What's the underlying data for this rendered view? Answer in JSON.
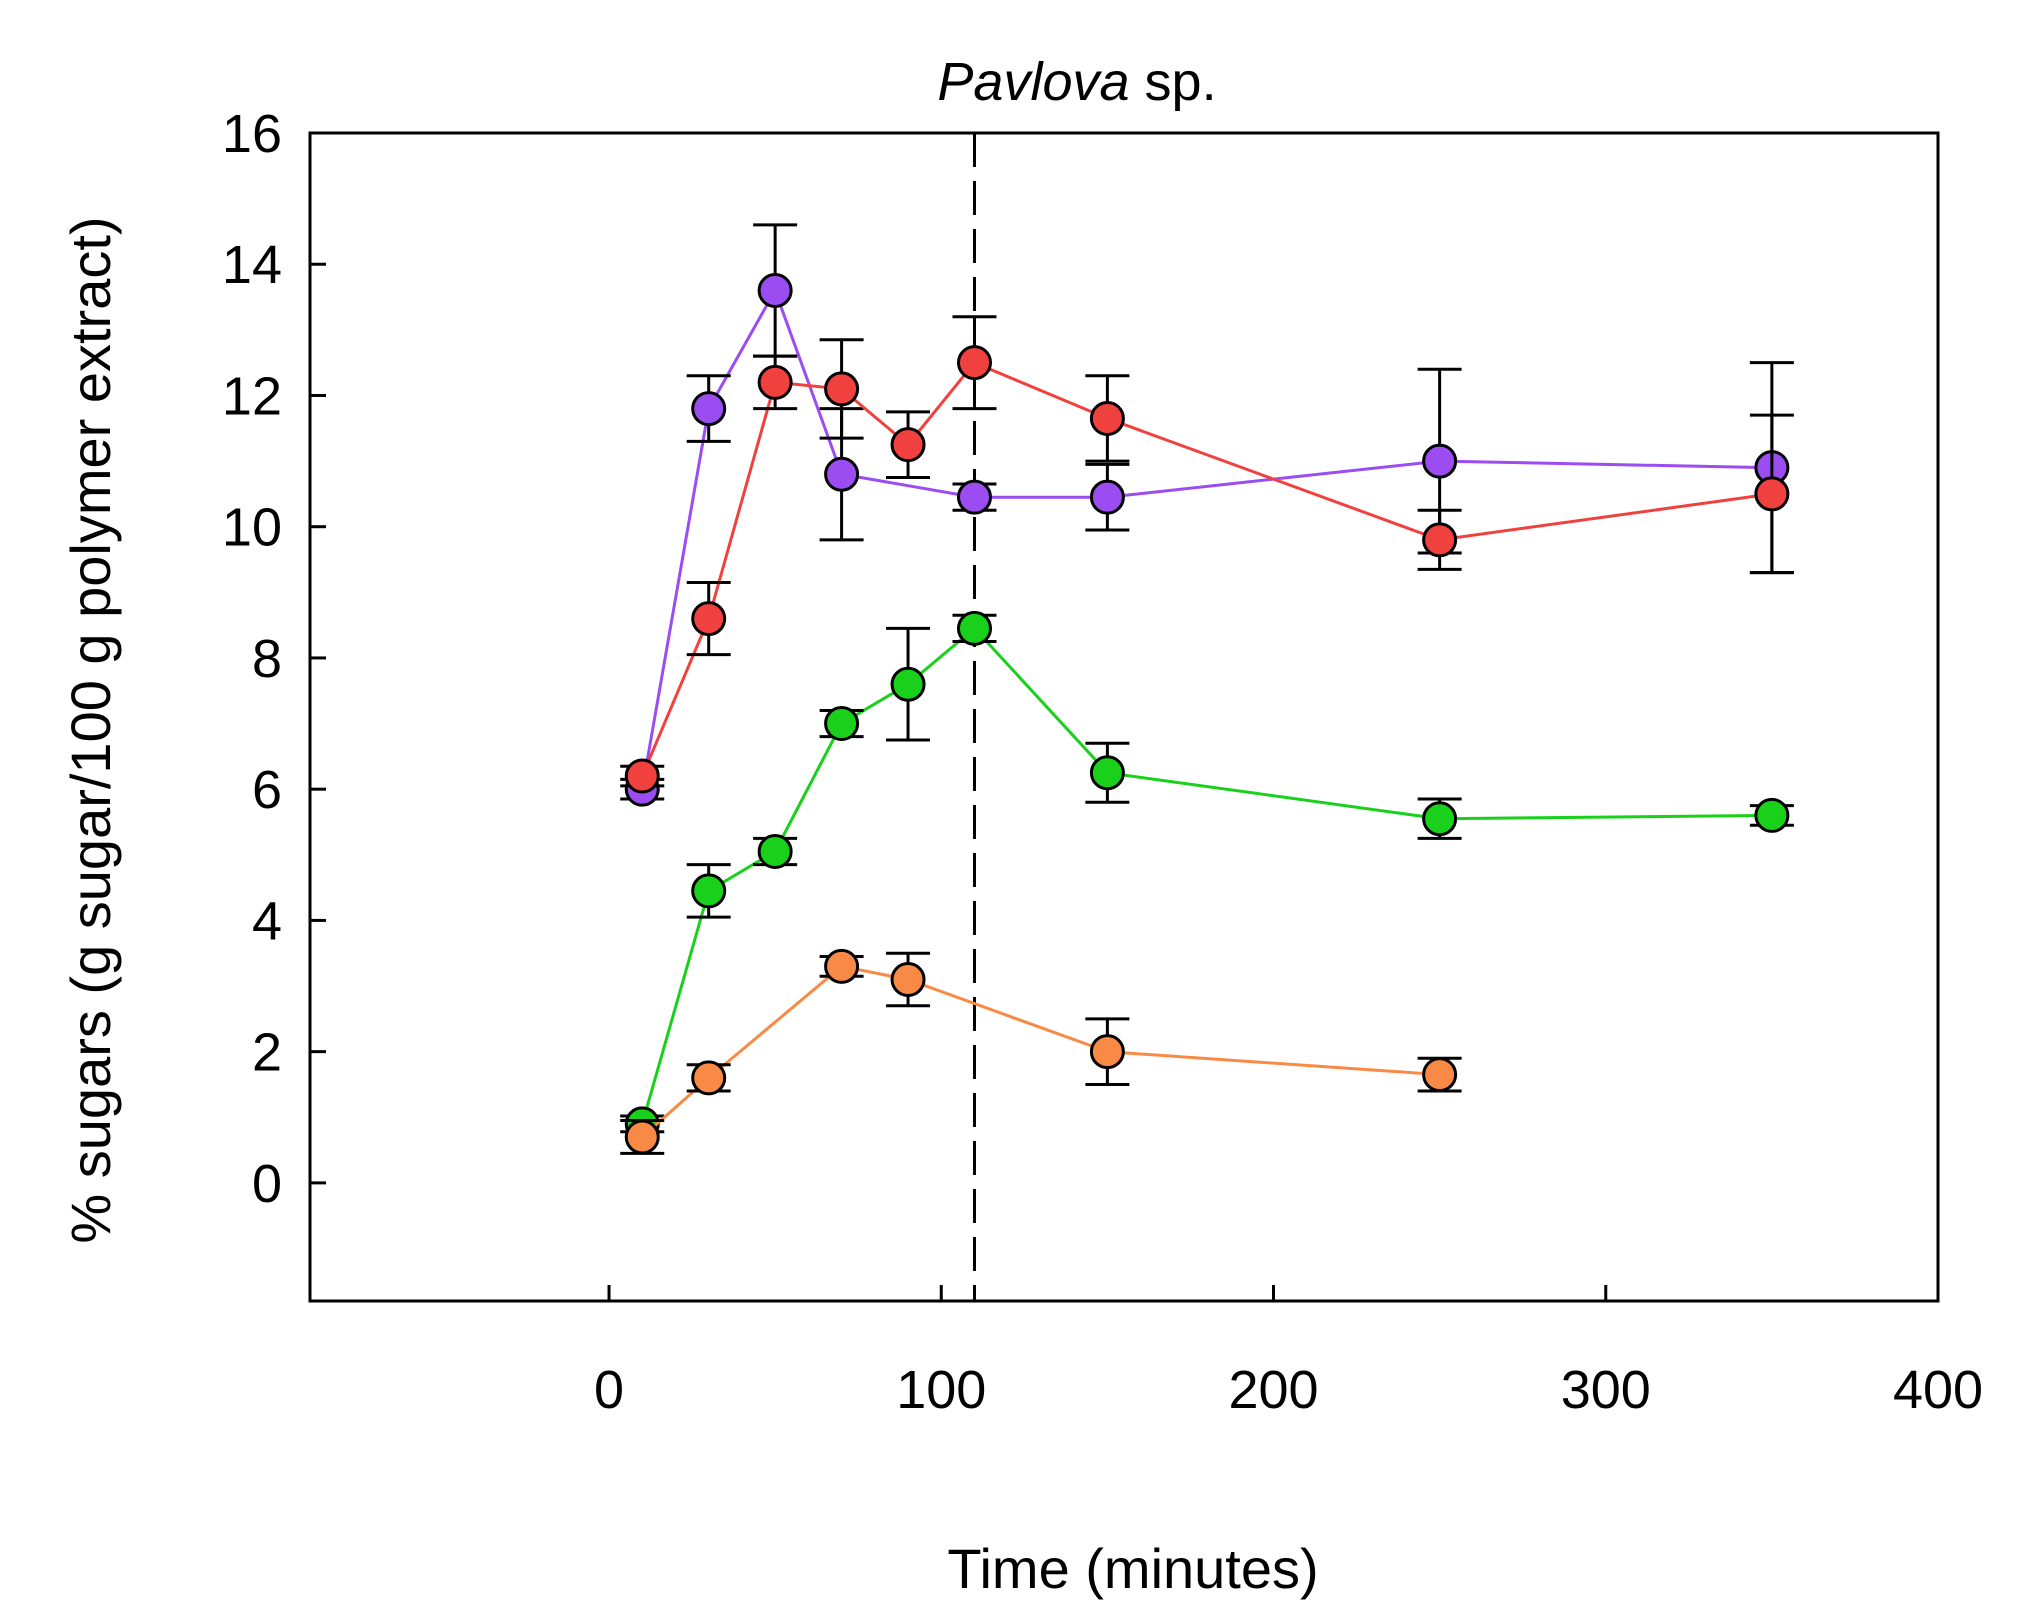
{
  "chart_data": {
    "type": "line",
    "title_italic": "Pavlova",
    "title_rest": " sp.",
    "xlabel": "Time (minutes)",
    "ylabel": "% sugars (g sugar/100 g polymer extract)",
    "xlim": [
      -90,
      400
    ],
    "ylim": [
      -1.8,
      16
    ],
    "xticks": [
      0,
      100,
      200,
      300,
      400
    ],
    "xtick_labels": [
      "0",
      "100",
      "200",
      "300",
      "400"
    ],
    "yticks": [
      0,
      2,
      4,
      6,
      8,
      10,
      12,
      14,
      16
    ],
    "ytick_labels": [
      "0",
      "2",
      "4",
      "6",
      "8",
      "10",
      "12",
      "14",
      "16"
    ],
    "vline_x": 110,
    "series": [
      {
        "name": "purple series",
        "color": "#9b4df2",
        "points": [
          {
            "x": 10,
            "y": 6.0,
            "err": 0.15
          },
          {
            "x": 30,
            "y": 11.8,
            "err": 0.5
          },
          {
            "x": 50,
            "y": 13.6,
            "err": 1.0
          },
          {
            "x": 70,
            "y": 10.8,
            "err": 1.0
          },
          {
            "x": 110,
            "y": 10.45,
            "err": 0.2
          },
          {
            "x": 150,
            "y": 10.45,
            "err": 0.5
          },
          {
            "x": 250,
            "y": 11.0,
            "err": 1.4
          },
          {
            "x": 350,
            "y": 10.9,
            "err": 1.6
          }
        ]
      },
      {
        "name": "red series",
        "color": "#f0413f",
        "points": [
          {
            "x": 10,
            "y": 6.2,
            "err": 0.15
          },
          {
            "x": 30,
            "y": 8.6,
            "err": 0.55
          },
          {
            "x": 50,
            "y": 12.2,
            "err": 0.4
          },
          {
            "x": 70,
            "y": 12.1,
            "err": 0.75
          },
          {
            "x": 90,
            "y": 11.25,
            "err": 0.5
          },
          {
            "x": 110,
            "y": 12.5,
            "err": 0.7
          },
          {
            "x": 150,
            "y": 11.65,
            "err": 0.65
          },
          {
            "x": 250,
            "y": 9.8,
            "err": 0.45
          },
          {
            "x": 350,
            "y": 10.5,
            "err": 1.2
          }
        ]
      },
      {
        "name": "green series",
        "color": "#19d11b",
        "points": [
          {
            "x": 10,
            "y": 0.9,
            "err": 0.12
          },
          {
            "x": 30,
            "y": 4.45,
            "err": 0.4
          },
          {
            "x": 50,
            "y": 5.05,
            "err": 0.2
          },
          {
            "x": 70,
            "y": 7.0,
            "err": 0.2
          },
          {
            "x": 90,
            "y": 7.6,
            "err": 0.85
          },
          {
            "x": 110,
            "y": 8.45,
            "err": 0.2
          },
          {
            "x": 150,
            "y": 6.25,
            "err": 0.45
          },
          {
            "x": 250,
            "y": 5.55,
            "err": 0.3
          },
          {
            "x": 350,
            "y": 5.6,
            "err": 0.15
          }
        ]
      },
      {
        "name": "orange series",
        "color": "#f98a45",
        "points": [
          {
            "x": 10,
            "y": 0.7,
            "err": 0.25
          },
          {
            "x": 30,
            "y": 1.6,
            "err": 0.2
          },
          {
            "x": 70,
            "y": 3.3,
            "err": 0.15
          },
          {
            "x": 90,
            "y": 3.1,
            "err": 0.4
          },
          {
            "x": 150,
            "y": 2.0,
            "err": 0.5
          },
          {
            "x": 250,
            "y": 1.65,
            "err": 0.25
          }
        ]
      }
    ]
  }
}
